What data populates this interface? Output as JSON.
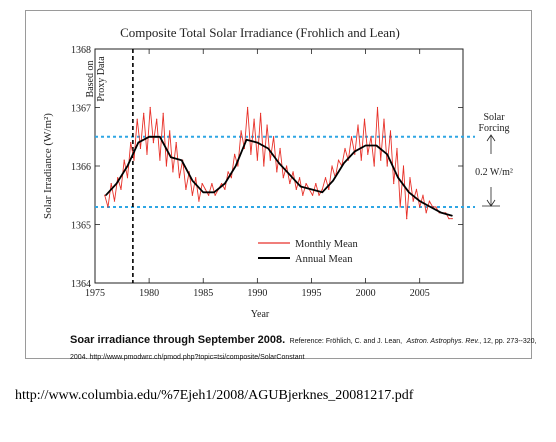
{
  "chart_data": {
    "type": "line",
    "title": "Composite Total Solar Irradiance (Frohlich and Lean)",
    "xlabel": "Year",
    "ylabel": "Solar Irradiance (W/m²)",
    "xlim": [
      1975,
      2009
    ],
    "ylim": [
      1364,
      1368
    ],
    "xticks": [
      1975,
      1980,
      1985,
      1990,
      1995,
      2000,
      2005
    ],
    "yticks": [
      1364,
      1365,
      1366,
      1367,
      1368
    ],
    "grid": false,
    "legend_position": "lower-center",
    "series": [
      {
        "name": "Monthly Mean",
        "color": "#e8322a",
        "x": [
          1975.9,
          1976.2,
          1976.5,
          1976.8,
          1977.1,
          1977.4,
          1977.7,
          1978.0,
          1978.3,
          1978.6,
          1978.9,
          1979.2,
          1979.5,
          1979.8,
          1980.1,
          1980.4,
          1980.7,
          1981.0,
          1981.3,
          1981.6,
          1981.9,
          1982.2,
          1982.5,
          1982.8,
          1983.1,
          1983.4,
          1983.7,
          1984.0,
          1984.3,
          1984.6,
          1984.9,
          1985.2,
          1985.5,
          1985.8,
          1986.1,
          1986.4,
          1986.7,
          1987.0,
          1987.3,
          1987.6,
          1987.9,
          1988.2,
          1988.5,
          1988.8,
          1989.1,
          1989.4,
          1989.7,
          1990.0,
          1990.3,
          1990.6,
          1990.9,
          1991.2,
          1991.5,
          1991.8,
          1992.1,
          1992.4,
          1992.7,
          1993.0,
          1993.3,
          1993.6,
          1993.9,
          1994.2,
          1994.5,
          1994.8,
          1995.1,
          1995.4,
          1995.7,
          1996.0,
          1996.3,
          1996.6,
          1996.9,
          1997.2,
          1997.5,
          1997.8,
          1998.1,
          1998.4,
          1998.7,
          1999.0,
          1999.3,
          1999.6,
          1999.9,
          2000.2,
          2000.5,
          2000.8,
          2001.1,
          2001.4,
          2001.7,
          2002.0,
          2002.3,
          2002.6,
          2002.9,
          2003.2,
          2003.5,
          2003.8,
          2004.1,
          2004.4,
          2004.7,
          2005.0,
          2005.3,
          2005.6,
          2005.9,
          2006.2,
          2006.5,
          2006.8,
          2007.1,
          2007.4,
          2007.7,
          2008.0
        ],
        "values": [
          1365.5,
          1365.3,
          1365.7,
          1365.4,
          1365.8,
          1365.6,
          1366.1,
          1365.8,
          1366.4,
          1366.1,
          1366.8,
          1366.3,
          1366.9,
          1366.2,
          1367.0,
          1366.4,
          1366.8,
          1366.1,
          1366.9,
          1366.0,
          1366.6,
          1365.9,
          1366.4,
          1365.8,
          1366.1,
          1365.6,
          1365.9,
          1365.5,
          1365.8,
          1365.4,
          1365.7,
          1365.6,
          1365.5,
          1365.7,
          1365.5,
          1365.6,
          1365.7,
          1365.6,
          1365.9,
          1365.8,
          1366.2,
          1366.0,
          1366.6,
          1366.3,
          1367.0,
          1366.2,
          1366.8,
          1366.1,
          1366.9,
          1366.0,
          1366.7,
          1366.1,
          1366.5,
          1365.9,
          1366.3,
          1365.8,
          1366.0,
          1365.7,
          1365.9,
          1365.6,
          1365.8,
          1365.5,
          1365.7,
          1365.6,
          1365.5,
          1365.7,
          1365.5,
          1365.6,
          1365.8,
          1365.6,
          1366.0,
          1365.8,
          1366.1,
          1366.0,
          1366.3,
          1366.1,
          1366.5,
          1366.2,
          1366.7,
          1366.1,
          1366.8,
          1366.2,
          1366.5,
          1366.0,
          1367.0,
          1366.1,
          1366.8,
          1366.0,
          1366.6,
          1365.7,
          1366.3,
          1365.3,
          1366.0,
          1365.1,
          1365.8,
          1365.4,
          1365.6,
          1365.3,
          1365.5,
          1365.2,
          1365.4,
          1365.3,
          1365.3,
          1365.2,
          1365.2,
          1365.2,
          1365.1,
          1365.1
        ]
      },
      {
        "name": "Annual Mean",
        "color": "#000000",
        "x": [
          1976,
          1977,
          1978,
          1979,
          1980,
          1981,
          1982,
          1983,
          1984,
          1985,
          1986,
          1987,
          1988,
          1989,
          1990,
          1991,
          1992,
          1993,
          1994,
          1995,
          1996,
          1997,
          1998,
          1999,
          2000,
          2001,
          2002,
          2003,
          2004,
          2005,
          2006,
          2007,
          2008
        ],
        "values": [
          1365.5,
          1365.7,
          1366.0,
          1366.4,
          1366.5,
          1366.5,
          1366.15,
          1366.1,
          1365.75,
          1365.55,
          1365.55,
          1365.7,
          1366.0,
          1366.45,
          1366.4,
          1366.3,
          1366.05,
          1365.85,
          1365.65,
          1365.6,
          1365.55,
          1365.75,
          1366.05,
          1366.25,
          1366.35,
          1366.35,
          1366.2,
          1365.8,
          1365.55,
          1365.4,
          1365.3,
          1365.2,
          1365.15
        ]
      }
    ],
    "reference_lines": {
      "horizontal_dashed_values": [
        1366.5,
        1365.3
      ],
      "horizontal_dashed_color": "#2ea6e4",
      "vertical_dashed_year": 1978.5
    },
    "annotations": {
      "proxy_label_line1": "Based on",
      "proxy_label_line2": "Proxy Data",
      "forcing_label_line1": "Solar",
      "forcing_label_line2": "Forcing",
      "forcing_value": "0.2 W/m²"
    }
  },
  "caption": {
    "headline": "Soar irradiance through September 2008.",
    "ref_prefix": "Reference: Fröhlich, C. and J. Lean,",
    "journal": "Astron. Astrophys. Rev.",
    "ref_rest": ", 12, pp. 273--320, 2004. http://www.pmodwrc.ch/pmod.php?topic=tsi/composite/SolarConstant"
  },
  "source_url": "http://www.columbia.edu/%7Ejeh1/2008/AGUBjerknes_20081217.pdf"
}
